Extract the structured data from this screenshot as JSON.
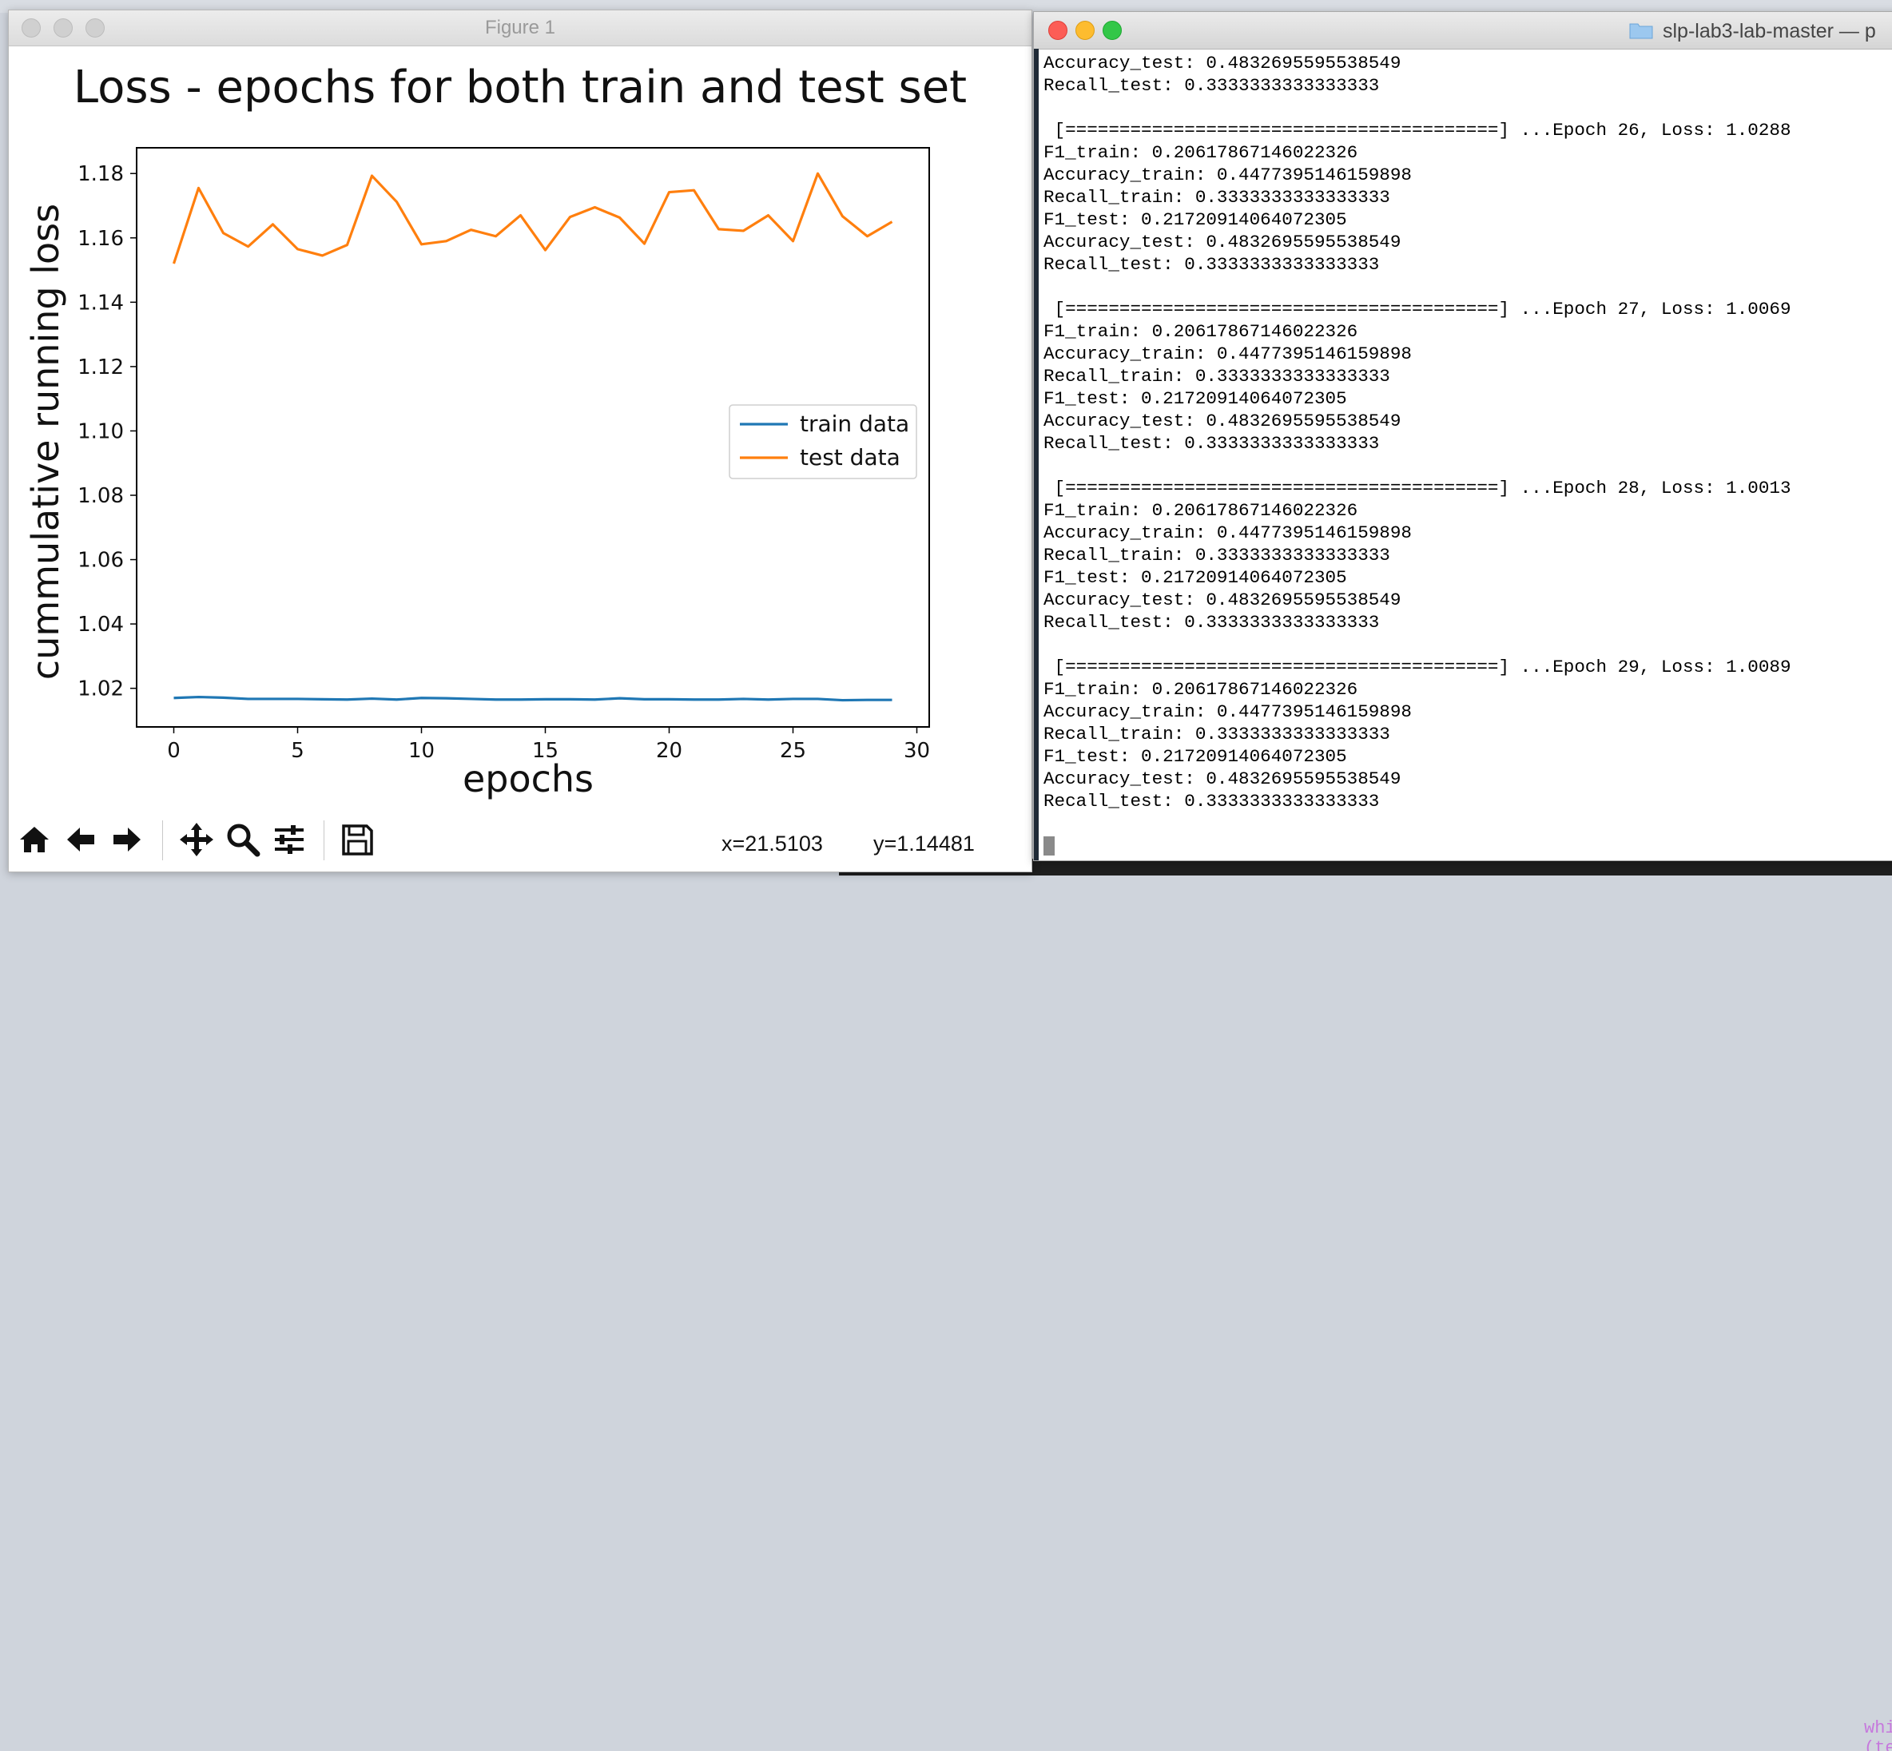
{
  "figure_window": {
    "title": "Figure 1",
    "coords": {
      "x": "x=21.5103",
      "y": "y=1.14481"
    },
    "toolbar": [
      "home-icon",
      "back-arrow-icon",
      "forward-arrow-icon",
      "pan-icon",
      "zoom-icon",
      "configure-icon",
      "save-icon"
    ]
  },
  "chart_data": {
    "type": "line",
    "title": "Loss - epochs for both train and test set",
    "xlabel": "epochs",
    "ylabel": "cummulative running loss",
    "xlim": [
      -1.5,
      30.5
    ],
    "ylim": [
      1.008,
      1.188
    ],
    "xticks": [
      "0",
      "5",
      "10",
      "15",
      "20",
      "25",
      "30"
    ],
    "yticks": [
      "1.02",
      "1.04",
      "1.06",
      "1.08",
      "1.10",
      "1.12",
      "1.14",
      "1.16",
      "1.18"
    ],
    "grid": false,
    "legend": "center-right",
    "series": [
      {
        "name": "train data",
        "color": "#1f77b4",
        "x": [
          0,
          1,
          2,
          3,
          4,
          5,
          6,
          7,
          8,
          9,
          10,
          11,
          12,
          13,
          14,
          15,
          16,
          17,
          18,
          19,
          20,
          21,
          22,
          23,
          24,
          25,
          26,
          27,
          28,
          29
        ],
        "values": [
          1.017,
          1.0173,
          1.0171,
          1.0167,
          1.0167,
          1.0167,
          1.0166,
          1.0165,
          1.0168,
          1.0165,
          1.017,
          1.0169,
          1.0167,
          1.0165,
          1.0165,
          1.0166,
          1.0166,
          1.0165,
          1.0169,
          1.0166,
          1.0166,
          1.0165,
          1.0165,
          1.0167,
          1.0165,
          1.0167,
          1.0167,
          1.0163,
          1.0164,
          1.0164
        ]
      },
      {
        "name": "test data",
        "color": "#ff7f0e",
        "x": [
          0,
          1,
          2,
          3,
          4,
          5,
          6,
          7,
          8,
          9,
          10,
          11,
          12,
          13,
          14,
          15,
          16,
          17,
          18,
          19,
          20,
          21,
          22,
          23,
          24,
          25,
          26,
          27,
          28,
          29
        ],
        "values": [
          1.152,
          1.1755,
          1.1615,
          1.1573,
          1.1642,
          1.1565,
          1.1545,
          1.1578,
          1.1793,
          1.1712,
          1.158,
          1.159,
          1.1625,
          1.1605,
          1.167,
          1.1562,
          1.1665,
          1.1695,
          1.1663,
          1.1582,
          1.1742,
          1.1748,
          1.1627,
          1.1622,
          1.167,
          1.159,
          1.18,
          1.1667,
          1.1605,
          1.165
        ]
      }
    ]
  },
  "terminal": {
    "title": "slp-lab3-lab-master — p",
    "lines": [
      "Accuracy_test: 0.4832695595538549",
      "Recall_test: 0.3333333333333333",
      "",
      " [========================================] ...Epoch 26, Loss: 1.0288",
      "F1_train: 0.20617867146022326",
      "Accuracy_train: 0.4477395146159898",
      "Recall_train: 0.3333333333333333",
      "F1_test: 0.21720914064072305",
      "Accuracy_test: 0.4832695595538549",
      "Recall_test: 0.3333333333333333",
      "",
      " [========================================] ...Epoch 27, Loss: 1.0069",
      "F1_train: 0.20617867146022326",
      "Accuracy_train: 0.4477395146159898",
      "Recall_train: 0.3333333333333333",
      "F1_test: 0.21720914064072305",
      "Accuracy_test: 0.4832695595538549",
      "Recall_test: 0.3333333333333333",
      "",
      " [========================================] ...Epoch 28, Loss: 1.0013",
      "F1_train: 0.20617867146022326",
      "Accuracy_train: 0.4477395146159898",
      "Recall_train: 0.3333333333333333",
      "F1_test: 0.21720914064072305",
      "Accuracy_test: 0.4832695595538549",
      "Recall_test: 0.3333333333333333",
      "",
      " [========================================] ...Epoch 29, Loss: 1.0089",
      "F1_train: 0.20617867146022326",
      "Accuracy_train: 0.4477395146159898",
      "Recall_train: 0.3333333333333333",
      "F1_test: 0.21720914064072305",
      "Accuracy_test: 0.4832695595538549",
      "Recall_test: 0.3333333333333333"
    ]
  },
  "background_code": "while (term != null) {"
}
